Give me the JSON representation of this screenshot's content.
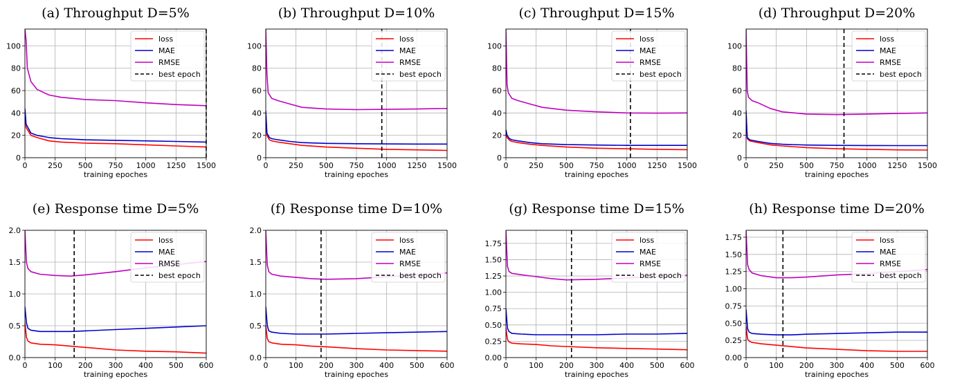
{
  "figure": {
    "legend_labels": [
      "loss",
      "MAE",
      "RMSE",
      "best epoch"
    ],
    "series_colors": {
      "loss": "#ff0000",
      "MAE": "#0000cc",
      "RMSE": "#bf00bf",
      "best epoch": "#000000"
    }
  },
  "chart_data": [
    {
      "type": "line",
      "title": "(a) Throughput D=5%",
      "xlabel": "training epoches",
      "ylabel": "",
      "xlim": [
        0,
        1500
      ],
      "ylim": [
        0,
        115
      ],
      "xticks": [
        0,
        250,
        500,
        750,
        1000,
        1250,
        1500
      ],
      "yticks": [
        0,
        20,
        40,
        60,
        80,
        100
      ],
      "ytick_labels": [
        "0",
        "20",
        "40",
        "60",
        "80",
        "100"
      ],
      "grid": true,
      "legend_position": "top-right",
      "best_epoch": 1500,
      "series": [
        {
          "name": "loss",
          "x": [
            0,
            10,
            50,
            100,
            200,
            300,
            500,
            750,
            1000,
            1250,
            1500
          ],
          "values": [
            42,
            27,
            20,
            18,
            15,
            14,
            13,
            12.5,
            11.5,
            10.5,
            9.5
          ]
        },
        {
          "name": "MAE",
          "x": [
            0,
            10,
            50,
            100,
            200,
            300,
            500,
            750,
            1000,
            1250,
            1500
          ],
          "values": [
            44,
            30,
            22,
            20,
            18,
            17,
            16,
            15.5,
            15,
            14.5,
            14
          ]
        },
        {
          "name": "RMSE",
          "x": [
            0,
            10,
            20,
            50,
            100,
            200,
            300,
            500,
            750,
            1000,
            1250,
            1500
          ],
          "values": [
            115,
            105,
            80,
            68,
            61,
            56,
            54,
            52,
            51,
            49,
            47.5,
            46.5
          ]
        }
      ]
    },
    {
      "type": "line",
      "title": "(b) Throughput D=10%",
      "xlabel": "training epoches",
      "ylabel": "",
      "xlim": [
        0,
        1500
      ],
      "ylim": [
        0,
        115
      ],
      "xticks": [
        0,
        250,
        500,
        750,
        1000,
        1250,
        1500
      ],
      "yticks": [
        0,
        20,
        40,
        60,
        80,
        100
      ],
      "ytick_labels": [
        "0",
        "20",
        "40",
        "60",
        "80",
        "100"
      ],
      "grid": true,
      "legend_position": "top-right",
      "best_epoch": 960,
      "series": [
        {
          "name": "loss",
          "x": [
            0,
            10,
            30,
            50,
            100,
            200,
            300,
            500,
            750,
            1000,
            1250,
            1500
          ],
          "values": [
            40,
            20,
            16,
            15,
            14,
            12.5,
            11,
            9.5,
            8.5,
            7.5,
            7,
            6.5
          ]
        },
        {
          "name": "MAE",
          "x": [
            0,
            10,
            30,
            50,
            100,
            200,
            300,
            500,
            750,
            1000,
            1250,
            1500
          ],
          "values": [
            42,
            22,
            18,
            17,
            16,
            14.5,
            13.5,
            12.8,
            12.5,
            12.3,
            12.2,
            12.2
          ]
        },
        {
          "name": "RMSE",
          "x": [
            0,
            10,
            20,
            50,
            100,
            200,
            300,
            500,
            750,
            1000,
            1250,
            1500
          ],
          "values": [
            115,
            75,
            58,
            53,
            51,
            48,
            45,
            43.5,
            43,
            43.2,
            43.5,
            44
          ]
        }
      ]
    },
    {
      "type": "line",
      "title": "(c) Throughput D=15%",
      "xlabel": "training epoches",
      "ylabel": "",
      "xlim": [
        0,
        1500
      ],
      "ylim": [
        0,
        115
      ],
      "xticks": [
        0,
        250,
        500,
        750,
        1000,
        1250,
        1500
      ],
      "yticks": [
        0,
        20,
        40,
        60,
        80,
        100
      ],
      "ytick_labels": [
        "0",
        "20",
        "40",
        "60",
        "80",
        "100"
      ],
      "grid": true,
      "legend_position": "top-right",
      "best_epoch": 1030,
      "series": [
        {
          "name": "loss",
          "x": [
            0,
            10,
            30,
            50,
            100,
            200,
            300,
            500,
            750,
            1000,
            1250,
            1500
          ],
          "values": [
            23,
            18,
            15.5,
            14.5,
            13.5,
            12,
            11,
            9.5,
            8.5,
            8,
            7.5,
            7.2
          ]
        },
        {
          "name": "MAE",
          "x": [
            0,
            10,
            30,
            50,
            100,
            200,
            300,
            500,
            750,
            1000,
            1250,
            1500
          ],
          "values": [
            25,
            20,
            17,
            16,
            15,
            13.5,
            12.5,
            11.7,
            11.3,
            11,
            11,
            11
          ]
        },
        {
          "name": "RMSE",
          "x": [
            0,
            10,
            20,
            50,
            100,
            200,
            300,
            500,
            750,
            1000,
            1250,
            1500
          ],
          "values": [
            115,
            65,
            58,
            53,
            51,
            48,
            45,
            42.5,
            41,
            40,
            39.8,
            40
          ]
        }
      ]
    },
    {
      "type": "line",
      "title": "(d) Throughput D=20%",
      "xlabel": "training epoches",
      "ylabel": "",
      "xlim": [
        0,
        1500
      ],
      "ylim": [
        0,
        115
      ],
      "xticks": [
        0,
        250,
        500,
        750,
        1000,
        1250,
        1500
      ],
      "yticks": [
        0,
        20,
        40,
        60,
        80,
        100
      ],
      "ytick_labels": [
        "0",
        "20",
        "40",
        "60",
        "80",
        "100"
      ],
      "grid": true,
      "legend_position": "top-right",
      "best_epoch": 810,
      "series": [
        {
          "name": "loss",
          "x": [
            0,
            10,
            30,
            50,
            100,
            200,
            300,
            500,
            750,
            1000,
            1250,
            1500
          ],
          "values": [
            40,
            17,
            15,
            14.5,
            13.5,
            11.5,
            10.5,
            9,
            8,
            7.5,
            7,
            6.8
          ]
        },
        {
          "name": "MAE",
          "x": [
            0,
            10,
            30,
            50,
            100,
            200,
            300,
            500,
            750,
            1000,
            1250,
            1500
          ],
          "values": [
            42,
            18,
            16,
            15.5,
            14.5,
            12.8,
            12,
            11.3,
            11,
            10.9,
            10.8,
            10.8
          ]
        },
        {
          "name": "RMSE",
          "x": [
            0,
            10,
            20,
            50,
            100,
            200,
            300,
            500,
            750,
            1000,
            1250,
            1500
          ],
          "values": [
            115,
            60,
            54,
            51,
            49,
            44,
            41,
            39,
            38.5,
            39,
            39.5,
            40
          ]
        }
      ]
    },
    {
      "type": "line",
      "title": "(e) Response time D=5%",
      "xlabel": "training epoches",
      "ylabel": "",
      "xlim": [
        0,
        600
      ],
      "ylim": [
        0,
        2.0
      ],
      "xticks": [
        0,
        100,
        200,
        300,
        400,
        500,
        600
      ],
      "yticks": [
        0,
        0.5,
        1.0,
        1.5,
        2.0
      ],
      "ytick_labels": [
        "0.0",
        "0.5",
        "1.0",
        "1.5",
        "2.0"
      ],
      "grid": true,
      "legend_position": "top-right",
      "best_epoch": 163,
      "series": [
        {
          "name": "loss",
          "x": [
            0,
            5,
            10,
            20,
            50,
            100,
            150,
            200,
            300,
            400,
            500,
            600
          ],
          "values": [
            0.55,
            0.32,
            0.26,
            0.23,
            0.21,
            0.2,
            0.18,
            0.16,
            0.12,
            0.1,
            0.09,
            0.07
          ]
        },
        {
          "name": "MAE",
          "x": [
            0,
            5,
            10,
            20,
            50,
            100,
            150,
            200,
            300,
            400,
            500,
            600
          ],
          "values": [
            0.8,
            0.55,
            0.46,
            0.43,
            0.41,
            0.41,
            0.41,
            0.42,
            0.44,
            0.46,
            0.48,
            0.5
          ]
        },
        {
          "name": "RMSE",
          "x": [
            0,
            5,
            10,
            20,
            50,
            100,
            150,
            200,
            300,
            400,
            500,
            600
          ],
          "values": [
            2.0,
            1.5,
            1.4,
            1.35,
            1.31,
            1.29,
            1.28,
            1.3,
            1.35,
            1.41,
            1.46,
            1.51
          ]
        }
      ]
    },
    {
      "type": "line",
      "title": "(f) Response time D=10%",
      "xlabel": "training epoches",
      "ylabel": "",
      "xlim": [
        0,
        600
      ],
      "ylim": [
        0,
        2.0
      ],
      "xticks": [
        0,
        100,
        200,
        300,
        400,
        500,
        600
      ],
      "yticks": [
        0,
        0.5,
        1.0,
        1.5,
        2.0
      ],
      "ytick_labels": [
        "0.0",
        "0.5",
        "1.0",
        "1.5",
        "2.0"
      ],
      "grid": true,
      "legend_position": "top-right",
      "best_epoch": 183,
      "series": [
        {
          "name": "loss",
          "x": [
            0,
            5,
            10,
            20,
            50,
            100,
            150,
            200,
            300,
            400,
            500,
            600
          ],
          "values": [
            0.5,
            0.3,
            0.25,
            0.23,
            0.21,
            0.2,
            0.18,
            0.17,
            0.14,
            0.12,
            0.11,
            0.1
          ]
        },
        {
          "name": "MAE",
          "x": [
            0,
            5,
            10,
            20,
            50,
            100,
            150,
            200,
            300,
            400,
            500,
            600
          ],
          "values": [
            0.8,
            0.5,
            0.42,
            0.4,
            0.38,
            0.37,
            0.37,
            0.37,
            0.38,
            0.39,
            0.4,
            0.41
          ]
        },
        {
          "name": "RMSE",
          "x": [
            0,
            5,
            10,
            20,
            50,
            100,
            150,
            200,
            300,
            400,
            500,
            600
          ],
          "values": [
            2.0,
            1.45,
            1.35,
            1.31,
            1.28,
            1.26,
            1.24,
            1.23,
            1.24,
            1.27,
            1.3,
            1.33
          ]
        }
      ]
    },
    {
      "type": "line",
      "title": "(g) Response time D=15%",
      "xlabel": "training epoches",
      "ylabel": "",
      "xlim": [
        0,
        600
      ],
      "ylim": [
        0,
        1.95
      ],
      "xticks": [
        0,
        100,
        200,
        300,
        400,
        500,
        600
      ],
      "yticks": [
        0,
        0.25,
        0.5,
        0.75,
        1.0,
        1.25,
        1.5,
        1.75
      ],
      "ytick_labels": [
        "0.00",
        "0.25",
        "0.50",
        "0.75",
        "1.00",
        "1.25",
        "1.50",
        "1.75"
      ],
      "grid": true,
      "legend_position": "top-right",
      "best_epoch": 217,
      "series": [
        {
          "name": "loss",
          "x": [
            0,
            5,
            10,
            20,
            50,
            100,
            150,
            200,
            300,
            400,
            500,
            600
          ],
          "values": [
            0.45,
            0.28,
            0.24,
            0.22,
            0.21,
            0.2,
            0.18,
            0.17,
            0.15,
            0.14,
            0.13,
            0.12
          ]
        },
        {
          "name": "MAE",
          "x": [
            0,
            5,
            10,
            20,
            50,
            100,
            150,
            200,
            300,
            400,
            500,
            600
          ],
          "values": [
            0.75,
            0.45,
            0.4,
            0.37,
            0.36,
            0.35,
            0.35,
            0.35,
            0.35,
            0.36,
            0.36,
            0.37
          ]
        },
        {
          "name": "RMSE",
          "x": [
            0,
            5,
            10,
            20,
            50,
            100,
            150,
            200,
            300,
            400,
            500,
            600
          ],
          "values": [
            1.95,
            1.4,
            1.32,
            1.29,
            1.27,
            1.24,
            1.21,
            1.19,
            1.2,
            1.22,
            1.24,
            1.26
          ]
        }
      ]
    },
    {
      "type": "line",
      "title": "(h) Response time D=20%",
      "xlabel": "training epoches",
      "ylabel": "",
      "xlim": [
        0,
        600
      ],
      "ylim": [
        0,
        1.85
      ],
      "xticks": [
        0,
        100,
        200,
        300,
        400,
        500,
        600
      ],
      "yticks": [
        0,
        0.25,
        0.5,
        0.75,
        1.0,
        1.25,
        1.5,
        1.75
      ],
      "ytick_labels": [
        "0.00",
        "0.25",
        "0.50",
        "0.75",
        "1.00",
        "1.25",
        "1.50",
        "1.75"
      ],
      "grid": true,
      "legend_position": "top-right",
      "best_epoch": 122,
      "series": [
        {
          "name": "loss",
          "x": [
            0,
            5,
            10,
            20,
            50,
            100,
            150,
            200,
            300,
            400,
            500,
            600
          ],
          "values": [
            0.45,
            0.27,
            0.24,
            0.22,
            0.2,
            0.18,
            0.16,
            0.14,
            0.12,
            0.1,
            0.09,
            0.09
          ]
        },
        {
          "name": "MAE",
          "x": [
            0,
            5,
            10,
            20,
            50,
            100,
            150,
            200,
            300,
            400,
            500,
            600
          ],
          "values": [
            0.7,
            0.42,
            0.37,
            0.35,
            0.34,
            0.33,
            0.33,
            0.34,
            0.35,
            0.36,
            0.37,
            0.37
          ]
        },
        {
          "name": "RMSE",
          "x": [
            0,
            5,
            10,
            20,
            50,
            100,
            150,
            200,
            300,
            400,
            500,
            600
          ],
          "values": [
            1.85,
            1.35,
            1.28,
            1.23,
            1.19,
            1.16,
            1.16,
            1.17,
            1.2,
            1.22,
            1.25,
            1.28
          ]
        }
      ]
    }
  ]
}
